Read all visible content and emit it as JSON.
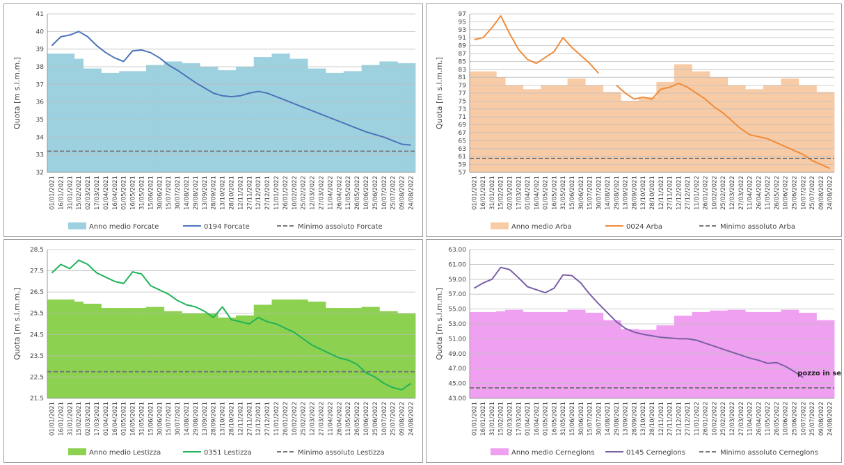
{
  "chart_data": [
    {
      "type": "line",
      "y_label": "Quota [m s.l.m.m.]",
      "ylim": [
        32,
        41
      ],
      "yticks": [
        32,
        33,
        34,
        35,
        36,
        37,
        38,
        39,
        40,
        41
      ],
      "grid": true,
      "categories": [
        "01/01/2021",
        "16/01/2021",
        "31/01/2021",
        "15/02/2021",
        "02/03/2021",
        "17/03/2021",
        "01/04/2021",
        "16/04/2021",
        "01/05/2021",
        "16/05/2021",
        "31/05/2021",
        "15/06/2021",
        "30/06/2021",
        "15/07/2021",
        "30/07/2021",
        "14/08/2021",
        "29/08/2021",
        "13/09/2021",
        "28/09/2021",
        "13/10/2021",
        "28/10/2021",
        "12/11/2021",
        "27/11/2021",
        "12/12/2021",
        "27/12/2021",
        "11/01/2022",
        "26/01/2022",
        "10/02/2022",
        "25/02/2022",
        "12/03/2022",
        "27/03/2022",
        "11/04/2022",
        "26/04/2022",
        "11/05/2022",
        "26/05/2022",
        "10/06/2022",
        "25/06/2022",
        "10/07/2022",
        "25/07/2022",
        "09/08/2022",
        "24/08/2022"
      ],
      "series": [
        {
          "name": "Anno medio Forcate",
          "style": "step-area",
          "color": "#9dd1e0",
          "values": [
            38.75,
            38.75,
            38.75,
            38.45,
            37.9,
            37.9,
            37.65,
            37.65,
            37.75,
            37.75,
            37.75,
            38.1,
            38.1,
            38.3,
            38.3,
            38.2,
            38.2,
            38.0,
            38.0,
            37.8,
            37.8,
            38.0,
            38.0,
            38.55,
            38.55,
            38.75,
            38.75,
            38.45,
            38.45,
            37.9,
            37.9,
            37.65,
            37.65,
            37.75,
            37.75,
            38.1,
            38.1,
            38.3,
            38.3,
            38.2,
            38.2
          ]
        },
        {
          "name": "0194 Forcate",
          "style": "line",
          "color": "#4a74b8",
          "values": [
            39.2,
            39.7,
            39.8,
            40.0,
            39.7,
            39.2,
            38.8,
            38.5,
            38.3,
            38.9,
            38.95,
            38.8,
            38.5,
            38.1,
            37.8,
            37.45,
            37.1,
            36.8,
            36.5,
            36.35,
            36.3,
            36.35,
            36.5,
            36.6,
            36.5,
            36.3,
            36.1,
            35.9,
            35.7,
            35.5,
            35.3,
            35.1,
            34.9,
            34.7,
            34.5,
            34.3,
            34.15,
            34.0,
            33.8,
            33.6,
            33.55
          ]
        },
        {
          "name": "Minimo assoluto Forcate",
          "style": "dashed",
          "color": "#777777",
          "value": 33.2
        }
      ]
    },
    {
      "type": "line",
      "y_label": "Quota [m s.l.m.m.]",
      "ylim": [
        57,
        97
      ],
      "yticks": [
        57,
        59,
        61,
        63,
        65,
        67,
        69,
        71,
        73,
        75,
        77,
        79,
        81,
        83,
        85,
        87,
        89,
        91,
        93,
        95,
        97
      ],
      "grid": true,
      "categories": [
        "01/01/2021",
        "16/01/2021",
        "31/01/2021",
        "15/02/2021",
        "02/03/2021",
        "17/03/2021",
        "01/04/2021",
        "16/04/2021",
        "01/05/2021",
        "16/05/2021",
        "31/05/2021",
        "15/06/2021",
        "30/06/2021",
        "15/07/2021",
        "30/07/2021",
        "14/08/2021",
        "29/08/2021",
        "13/09/2021",
        "28/09/2021",
        "13/10/2021",
        "28/10/2021",
        "12/11/2021",
        "27/11/2021",
        "12/12/2021",
        "27/12/2021",
        "11/01/2022",
        "26/01/2022",
        "10/02/2022",
        "25/02/2022",
        "12/03/2022",
        "27/03/2022",
        "11/04/2022",
        "26/04/2022",
        "11/05/2022",
        "26/05/2022",
        "10/06/2022",
        "25/06/2022",
        "10/07/2022",
        "25/07/2022",
        "09/08/2022",
        "24/08/2022"
      ],
      "series": [
        {
          "name": "Anno medio Arba",
          "style": "step-area",
          "color": "#f8cba7",
          "values": [
            82.5,
            82.5,
            82.5,
            81,
            79,
            79,
            78,
            78,
            79,
            79,
            79,
            80.7,
            80.7,
            79,
            79,
            77.3,
            77.3,
            75,
            75,
            76,
            76,
            79.8,
            79.8,
            84.3,
            84.3,
            82.5,
            82.5,
            81,
            81,
            79,
            79,
            78,
            78,
            79,
            79,
            80.7,
            80.7,
            79,
            79,
            77.3,
            77.3
          ]
        },
        {
          "name": "0024 Arba",
          "style": "line",
          "color": "#f08c3a",
          "values": [
            90.5,
            91,
            93.5,
            96.5,
            92,
            88,
            85.5,
            84.5,
            86,
            87.5,
            91,
            88.5,
            86.5,
            84.5,
            82,
            null,
            79,
            77,
            75.5,
            76,
            75.5,
            78,
            78.5,
            79.5,
            78.5,
            77,
            75.5,
            73.5,
            72,
            70,
            68,
            66.5,
            66,
            65.5,
            64.5,
            63.5,
            62.5,
            61.5,
            60,
            59,
            58
          ]
        },
        {
          "name": "Minimo assoluto Arba",
          "style": "dashed",
          "color": "#777777",
          "value": 60.5
        }
      ]
    },
    {
      "type": "line",
      "y_label": "Quota [m s.l.m.m.]",
      "ylim": [
        21.5,
        28.5
      ],
      "yticks": [
        21.5,
        22.5,
        23.5,
        24.5,
        25.5,
        26.5,
        27.5,
        28.5
      ],
      "grid": true,
      "categories": [
        "01/01/2021",
        "16/01/2021",
        "31/01/2021",
        "15/02/2021",
        "02/03/2021",
        "17/03/2021",
        "01/04/2021",
        "16/04/2021",
        "01/05/2021",
        "16/05/2021",
        "31/05/2021",
        "15/06/2021",
        "30/06/2021",
        "15/07/2021",
        "30/07/2021",
        "14/08/2021",
        "29/08/2021",
        "13/09/2021",
        "28/09/2021",
        "13/10/2021",
        "28/10/2021",
        "12/11/2021",
        "27/11/2021",
        "12/12/2021",
        "27/12/2021",
        "11/01/2022",
        "26/01/2022",
        "10/02/2022",
        "25/02/2022",
        "12/03/2022",
        "27/03/2022",
        "11/04/2022",
        "26/04/2022",
        "11/05/2022",
        "26/05/2022",
        "10/06/2022",
        "25/06/2022",
        "10/07/2022",
        "25/07/2022",
        "09/08/2022",
        "24/08/2022"
      ],
      "series": [
        {
          "name": "Anno medio Lestizza",
          "style": "step-area",
          "color": "#8dd150",
          "values": [
            26.15,
            26.15,
            26.15,
            26.05,
            25.95,
            25.95,
            25.75,
            25.75,
            25.75,
            25.75,
            25.75,
            25.8,
            25.8,
            25.6,
            25.6,
            25.5,
            25.5,
            25.5,
            25.5,
            25.3,
            25.3,
            25.4,
            25.4,
            25.9,
            25.9,
            26.15,
            26.15,
            26.15,
            26.15,
            26.05,
            26.05,
            25.75,
            25.75,
            25.75,
            25.75,
            25.8,
            25.8,
            25.6,
            25.6,
            25.5,
            25.5
          ]
        },
        {
          "name": "0351 Lestizza",
          "style": "line",
          "color": "#1fb35a",
          "values": [
            27.4,
            27.8,
            27.6,
            28.0,
            27.8,
            27.4,
            27.2,
            27.0,
            26.9,
            27.45,
            27.35,
            26.8,
            26.6,
            26.4,
            26.1,
            25.9,
            25.8,
            25.6,
            25.3,
            25.8,
            25.2,
            25.1,
            25.0,
            25.3,
            25.1,
            25.0,
            24.8,
            24.6,
            24.3,
            24.0,
            23.8,
            23.6,
            23.4,
            23.3,
            23.1,
            22.7,
            22.5,
            22.2,
            22.0,
            21.9,
            22.2
          ]
        },
        {
          "name": "Minimo assoluto Lestizza",
          "style": "dashed",
          "color": "#777777",
          "value": 22.75
        }
      ]
    },
    {
      "type": "line",
      "y_label": "Quota [m s.l.m.m.]",
      "ylim": [
        43,
        63
      ],
      "yticks": [
        {
          "value": 43,
          "label": "43.00"
        },
        {
          "value": 45,
          "label": "45.00"
        },
        {
          "value": 47,
          "label": "47.00"
        },
        {
          "value": 49,
          "label": "49.00"
        },
        {
          "value": 51,
          "label": "51.00"
        },
        {
          "value": 53,
          "label": "53.00"
        },
        {
          "value": 55,
          "label": "55.00"
        },
        {
          "value": 57,
          "label": "57.00"
        },
        {
          "value": 59,
          "label": "59.00"
        },
        {
          "value": 61,
          "label": "61.00"
        },
        {
          "value": 63,
          "label": "63.00"
        }
      ],
      "grid": true,
      "annotation": "pozzo in secca",
      "categories": [
        "01/01/2021",
        "16/01/2021",
        "31/01/2021",
        "15/02/2021",
        "02/03/2021",
        "17/03/2021",
        "01/04/2021",
        "16/04/2021",
        "01/05/2021",
        "16/05/2021",
        "31/05/2021",
        "15/06/2021",
        "30/06/2021",
        "15/07/2021",
        "30/07/2021",
        "14/08/2021",
        "29/08/2021",
        "13/09/2021",
        "28/09/2021",
        "13/10/2021",
        "28/10/2021",
        "12/11/2021",
        "27/11/2021",
        "12/12/2021",
        "27/12/2021",
        "11/01/2022",
        "26/01/2022",
        "10/02/2022",
        "25/02/2022",
        "12/03/2022",
        "27/03/2022",
        "11/04/2022",
        "26/04/2022",
        "11/05/2022",
        "26/05/2022",
        "10/06/2022",
        "25/06/2022",
        "10/07/2022",
        "25/07/2022",
        "09/08/2022",
        "24/08/2022"
      ],
      "series": [
        {
          "name": "Anno medio Cerneglons",
          "style": "step-area",
          "color": "#f0a0f0",
          "values": [
            54.6,
            54.6,
            54.6,
            54.7,
            54.9,
            54.9,
            54.6,
            54.6,
            54.6,
            54.6,
            54.6,
            54.9,
            54.9,
            54.5,
            54.5,
            53.5,
            53.5,
            52.3,
            52.3,
            52.2,
            52.2,
            52.8,
            52.8,
            54.1,
            54.1,
            54.6,
            54.6,
            54.8,
            54.8,
            54.9,
            54.9,
            54.6,
            54.6,
            54.6,
            54.6,
            54.9,
            54.9,
            54.5,
            54.5,
            53.5,
            53.5
          ]
        },
        {
          "name": "0145 Cerneglons",
          "style": "line",
          "color": "#7a5fa5",
          "values": [
            57.8,
            58.5,
            59,
            60.6,
            60.3,
            59.2,
            58,
            57.6,
            57.2,
            57.8,
            59.6,
            59.5,
            58.5,
            57,
            55.7,
            54.5,
            53.3,
            52.4,
            51.9,
            51.6,
            51.4,
            51.2,
            51.1,
            51.0,
            51.0,
            50.8,
            50.4,
            50.0,
            49.6,
            49.2,
            48.8,
            48.4,
            48.1,
            47.7,
            47.8,
            47.3,
            46.6,
            45.8,
            null,
            null,
            null
          ]
        },
        {
          "name": "Minimo assoluto Cerneglons",
          "style": "dashed",
          "color": "#777777",
          "value": 44.4
        }
      ]
    }
  ]
}
